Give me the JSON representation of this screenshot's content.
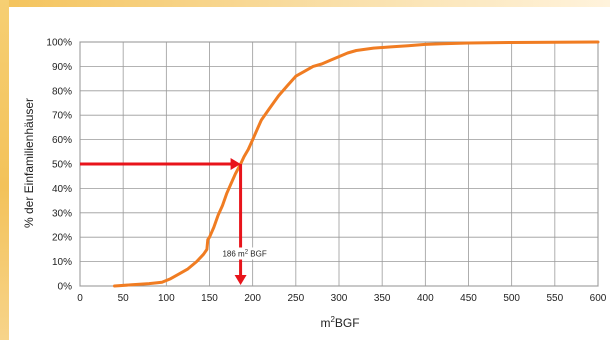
{
  "chart_data": {
    "type": "line",
    "xlabel_base": "m",
    "xlabel_sup": "2",
    "xlabel_rest": "BGF",
    "ylabel": "% der Einfamilienhäuser",
    "xlim": [
      0,
      600
    ],
    "ylim": [
      0,
      100
    ],
    "x_ticks": [
      0,
      50,
      100,
      150,
      200,
      250,
      300,
      350,
      400,
      450,
      500,
      550,
      600
    ],
    "y_ticks": [
      0,
      10,
      20,
      30,
      40,
      50,
      60,
      70,
      80,
      90,
      100
    ],
    "y_tick_suffix": "%",
    "grid": true,
    "series": [
      {
        "color": "#f07c22",
        "x": [
          40,
          60,
          80,
          95,
          105,
          115,
          125,
          135,
          143,
          147,
          148,
          150,
          155,
          160,
          165,
          170,
          175,
          180,
          186,
          190,
          195,
          200,
          205,
          210,
          220,
          230,
          240,
          250,
          260,
          270,
          280,
          290,
          300,
          310,
          320,
          340,
          360,
          380,
          400,
          420,
          450,
          500,
          550,
          600
        ],
        "y": [
          0,
          0.5,
          1,
          1.5,
          3,
          5,
          7,
          10,
          13,
          15,
          19,
          20,
          24,
          29,
          33,
          38,
          42,
          46,
          50,
          53,
          56,
          60,
          64,
          68,
          73,
          78,
          82,
          86,
          88,
          90,
          91,
          92.5,
          94,
          95.5,
          96.5,
          97.5,
          98,
          98.5,
          99,
          99.3,
          99.6,
          99.8,
          99.9,
          100
        ]
      }
    ],
    "annotation": {
      "x": 186,
      "y": 50,
      "label_value": "186",
      "label_unit_base": "m",
      "label_unit_sup": "2",
      "label_unit_rest": "BGF",
      "color": "#e8141b"
    }
  },
  "colors": {
    "grid": "#9a9a9a",
    "axis": "#7a7a7a"
  }
}
